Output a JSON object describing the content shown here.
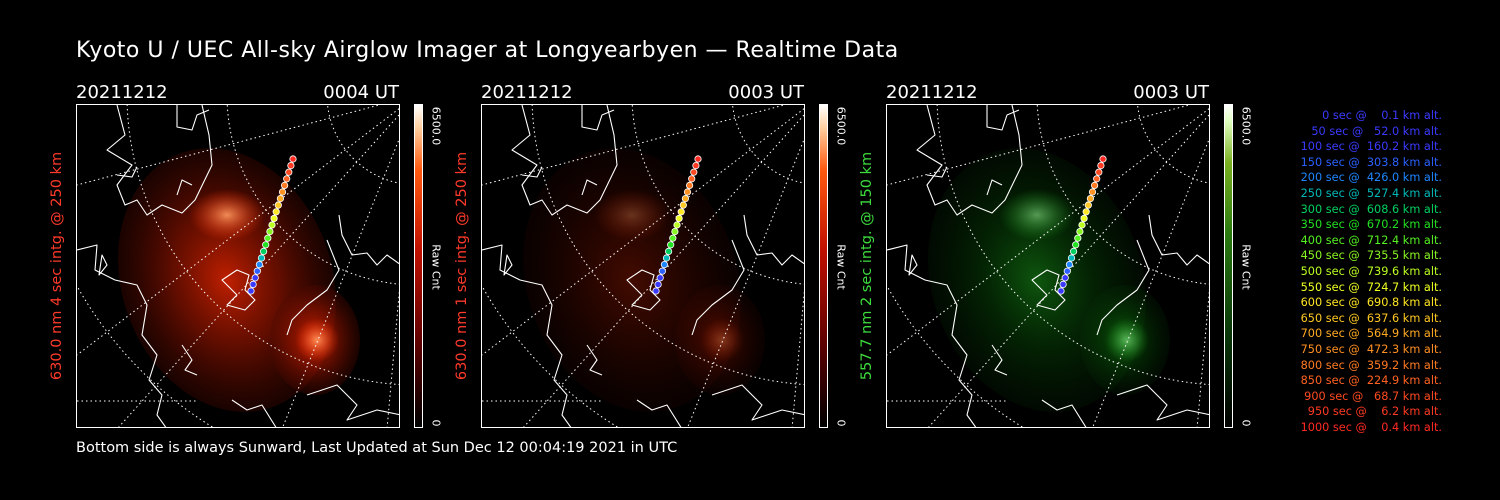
{
  "title": "Kyoto U / UEC All-sky Airglow Imager at Longyearbyen — Realtime Data",
  "footer": "Bottom side is always Sunward, Last Updated at Sun Dec 12 00:04:19 2021 in UTC",
  "panels": [
    {
      "date": "20211212",
      "time": "0004 UT",
      "ylabel": "630.0 nm 4 sec intg. @ 250 km",
      "cbar_top": "6500.0",
      "cbar_mid": "Raw Cnt",
      "cbar_bottom": "0",
      "label_color": "#ff3a2a",
      "glow": "red",
      "brightness": 1.0
    },
    {
      "date": "20211212",
      "time": "0003 UT",
      "ylabel": "630.0 nm 1 sec intg. @ 250 km",
      "cbar_top": "6500.0",
      "cbar_mid": "Raw Cnt",
      "cbar_bottom": "0",
      "label_color": "#ff3a2a",
      "glow": "red",
      "brightness": 0.35
    },
    {
      "date": "20211212",
      "time": "0003 UT",
      "ylabel": "557.7 nm 2 sec intg. @ 150 km",
      "cbar_top": "6500.0",
      "cbar_mid": "Raw Cnt",
      "cbar_bottom": "0",
      "label_color": "#3ddc3d",
      "glow": "green",
      "brightness": 0.6
    }
  ],
  "legend": [
    {
      "text": "   0 sec @    0.1 km alt.",
      "color": "#3a3aff"
    },
    {
      "text": "  50 sec @   52.0 km alt.",
      "color": "#3a3aff"
    },
    {
      "text": " 100 sec @  160.2 km alt.",
      "color": "#3a3aff"
    },
    {
      "text": " 150 sec @  303.8 km alt.",
      "color": "#2b60ff"
    },
    {
      "text": " 200 sec @  426.0 km alt.",
      "color": "#1e86ff"
    },
    {
      "text": " 250 sec @  527.4 km alt.",
      "color": "#00b8b8"
    },
    {
      "text": " 300 sec @  608.6 km alt.",
      "color": "#00d060"
    },
    {
      "text": " 350 sec @  670.2 km alt.",
      "color": "#22e022"
    },
    {
      "text": " 400 sec @  712.4 km alt.",
      "color": "#55f022"
    },
    {
      "text": " 450 sec @  735.5 km alt.",
      "color": "#88f522"
    },
    {
      "text": " 500 sec @  739.6 km alt.",
      "color": "#bbff22"
    },
    {
      "text": " 550 sec @  724.7 km alt.",
      "color": "#eeff22"
    },
    {
      "text": " 600 sec @  690.8 km alt.",
      "color": "#ffe622"
    },
    {
      "text": " 650 sec @  637.6 km alt.",
      "color": "#ffc822"
    },
    {
      "text": " 700 sec @  564.9 km alt.",
      "color": "#ffaa22"
    },
    {
      "text": " 750 sec @  472.3 km alt.",
      "color": "#ff9022"
    },
    {
      "text": " 800 sec @  359.2 km alt.",
      "color": "#ff7a22"
    },
    {
      "text": " 850 sec @  224.9 km alt.",
      "color": "#ff6222"
    },
    {
      "text": " 900 sec @   68.7 km alt.",
      "color": "#ff4a22"
    },
    {
      "text": " 950 sec @    6.2 km alt.",
      "color": "#ff3a22"
    },
    {
      "text": "1000 sec @    0.4 km alt.",
      "color": "#ff2a22"
    }
  ]
}
